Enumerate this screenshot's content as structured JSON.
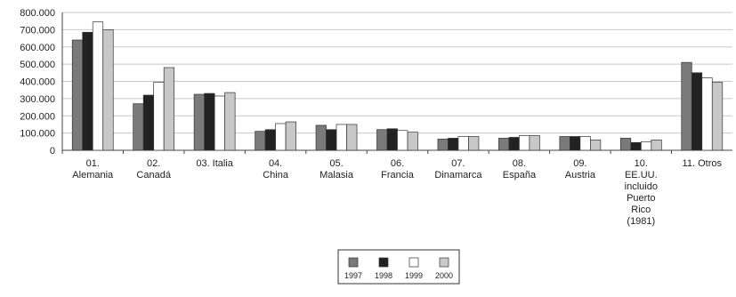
{
  "chart_data": {
    "type": "bar",
    "title": "",
    "xlabel": "",
    "ylabel": "",
    "ylim": [
      0,
      800000
    ],
    "yticks": [
      "0",
      "100.000",
      "200.000",
      "300.000",
      "400.000",
      "500.000",
      "600.000",
      "700.000",
      "800.000"
    ],
    "grid": true,
    "legend_position": "bottom-center",
    "categories": [
      [
        "01.",
        "Alemania"
      ],
      [
        "02.",
        "Canadá"
      ],
      [
        "03. Italia"
      ],
      [
        "04.",
        "China"
      ],
      [
        "05.",
        "Malasia"
      ],
      [
        "06.",
        "Francia"
      ],
      [
        "07.",
        "Dinamarca"
      ],
      [
        "08.",
        "España"
      ],
      [
        "09.",
        "Austria"
      ],
      [
        "10.",
        "EE.UU.",
        "incluido",
        "Puerto",
        "Rico",
        "(1981)"
      ],
      [
        "11. Otros"
      ]
    ],
    "series": [
      {
        "name": "1997",
        "color": "#7a7a7a",
        "values": [
          640000,
          270000,
          325000,
          110000,
          145000,
          120000,
          65000,
          70000,
          80000,
          70000,
          510000
        ]
      },
      {
        "name": "1998",
        "color": "#222222",
        "values": [
          685000,
          320000,
          330000,
          120000,
          120000,
          125000,
          70000,
          75000,
          80000,
          45000,
          450000
        ]
      },
      {
        "name": "1999",
        "color": "#ffffff",
        "values": [
          745000,
          395000,
          315000,
          155000,
          150000,
          115000,
          80000,
          85000,
          80000,
          50000,
          420000
        ]
      },
      {
        "name": "2000",
        "color": "#c8c8c8",
        "values": [
          700000,
          480000,
          335000,
          165000,
          150000,
          105000,
          80000,
          85000,
          60000,
          60000,
          395000
        ]
      }
    ]
  }
}
